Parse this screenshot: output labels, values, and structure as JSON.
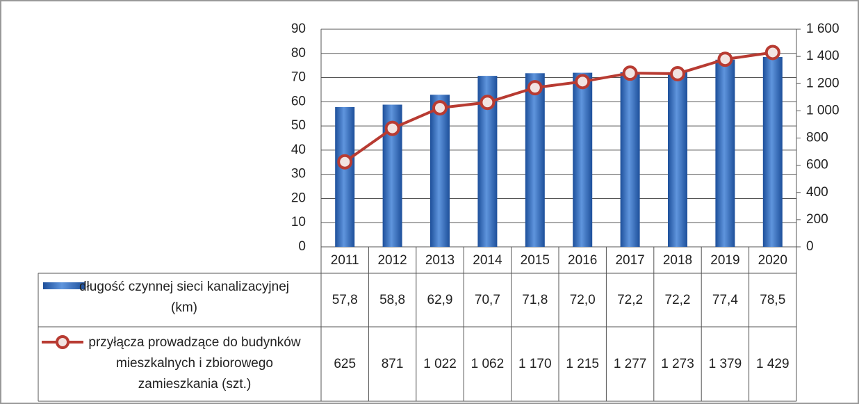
{
  "chart_data": {
    "type": "bar-line",
    "categories": [
      "2011",
      "2012",
      "2013",
      "2014",
      "2015",
      "2016",
      "2017",
      "2018",
      "2019",
      "2020"
    ],
    "series": [
      {
        "name": "długość czynnej sieci kanalizacyjnej (km)",
        "type": "bar",
        "color": "#2e64b4",
        "values": [
          57.8,
          58.8,
          62.9,
          70.7,
          71.8,
          72.0,
          72.2,
          72.2,
          77.4,
          78.5
        ],
        "value_labels": [
          "57,8",
          "58,8",
          "62,9",
          "70,7",
          "71,8",
          "72,0",
          "72,2",
          "72,2",
          "77,4",
          "78,5"
        ]
      },
      {
        "name": "przyłącza prowadzące do budynków mieszkalnych i zbiorowego zamieszkania (szt.)",
        "type": "line",
        "axis": "y2",
        "color": "#b83b32",
        "values": [
          625,
          871,
          1022,
          1062,
          1170,
          1215,
          1277,
          1273,
          1379,
          1429
        ],
        "value_labels": [
          "625",
          "871",
          "1 022",
          "1 062",
          "1 170",
          "1 215",
          "1 277",
          "1 273",
          "1 379",
          "1 429"
        ]
      }
    ],
    "ylim": [
      0,
      90
    ],
    "yticks": [
      0,
      10,
      20,
      30,
      40,
      50,
      60,
      70,
      80,
      90
    ],
    "y2lim": [
      0,
      1600
    ],
    "y2ticks": [
      0,
      200,
      400,
      600,
      800,
      {
        "value": 1000,
        "label": "1 000"
      },
      {
        "value": 1200,
        "label": "1 200"
      },
      {
        "value": 1400,
        "label": "1 400"
      },
      {
        "value": 1600,
        "label": "1 600"
      }
    ],
    "grid": true
  }
}
